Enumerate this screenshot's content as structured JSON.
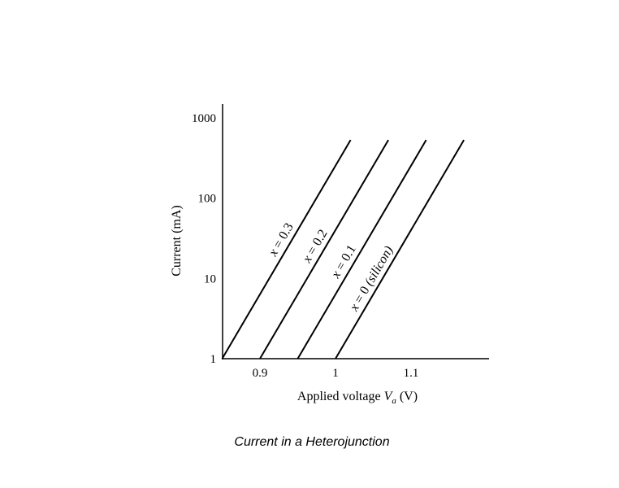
{
  "caption": "Current in a Heterojunction",
  "chart_data": {
    "type": "line",
    "title": "Current in a Heterojunction",
    "xlabel": "Applied voltage Va (V)",
    "ylabel": "Current (mA)",
    "yscale": "log",
    "xlim": [
      0.84,
      1.2
    ],
    "ylim": [
      1,
      2000
    ],
    "x_ticks": [
      0.9,
      1,
      1.1
    ],
    "x_tick_labels": [
      "0.9",
      "1",
      "1.1"
    ],
    "y_ticks": [
      1,
      10,
      100,
      1000
    ],
    "y_tick_labels": [
      "1",
      "10",
      "100",
      "1000"
    ],
    "grid": false,
    "legend": "none",
    "series": [
      {
        "name": "x = 0.3",
        "x": [
          0.85,
          1.02
        ],
        "y": [
          1,
          530
        ]
      },
      {
        "name": "x = 0.2",
        "x": [
          0.9,
          1.07
        ],
        "y": [
          1,
          530
        ]
      },
      {
        "name": "x = 0.1",
        "x": [
          0.95,
          1.12
        ],
        "y": [
          1,
          530
        ]
      },
      {
        "name": "x = 0 (silicon)",
        "x": [
          1.0,
          1.17
        ],
        "y": [
          1,
          530
        ]
      }
    ]
  }
}
